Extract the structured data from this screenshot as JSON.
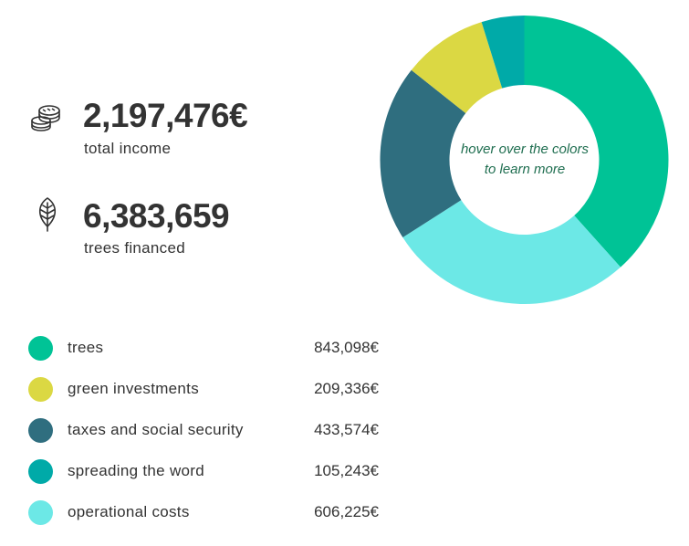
{
  "stats": {
    "income": {
      "value": "2,197,476€",
      "label": "total income",
      "icon": "coins-icon"
    },
    "trees": {
      "value": "6,383,659",
      "label": "trees financed",
      "icon": "leaf-icon"
    }
  },
  "hint": {
    "line1": "hover over the colors",
    "line2": "to learn more"
  },
  "chart_data": {
    "type": "pie",
    "style": "donut",
    "categories": [
      "trees",
      "operational costs",
      "taxes and social security",
      "green investments",
      "spreading the word"
    ],
    "values": [
      843098,
      606225,
      433574,
      209336,
      105243
    ],
    "colors": [
      "#00c396",
      "#6ce8e6",
      "#2f6e7f",
      "#dbd843",
      "#00aaa8"
    ],
    "start": "top, clockwise"
  },
  "legend": {
    "items": [
      {
        "label": "trees",
        "value": "843,098€",
        "color": "#00c396"
      },
      {
        "label": "green investments",
        "value": "209,336€",
        "color": "#dbd843"
      },
      {
        "label": "taxes and social security",
        "value": "433,574€",
        "color": "#2f6e7f"
      },
      {
        "label": "spreading the word",
        "value": "105,243€",
        "color": "#00aaa8"
      },
      {
        "label": "operational costs",
        "value": "606,225€",
        "color": "#6ce8e6"
      }
    ]
  }
}
